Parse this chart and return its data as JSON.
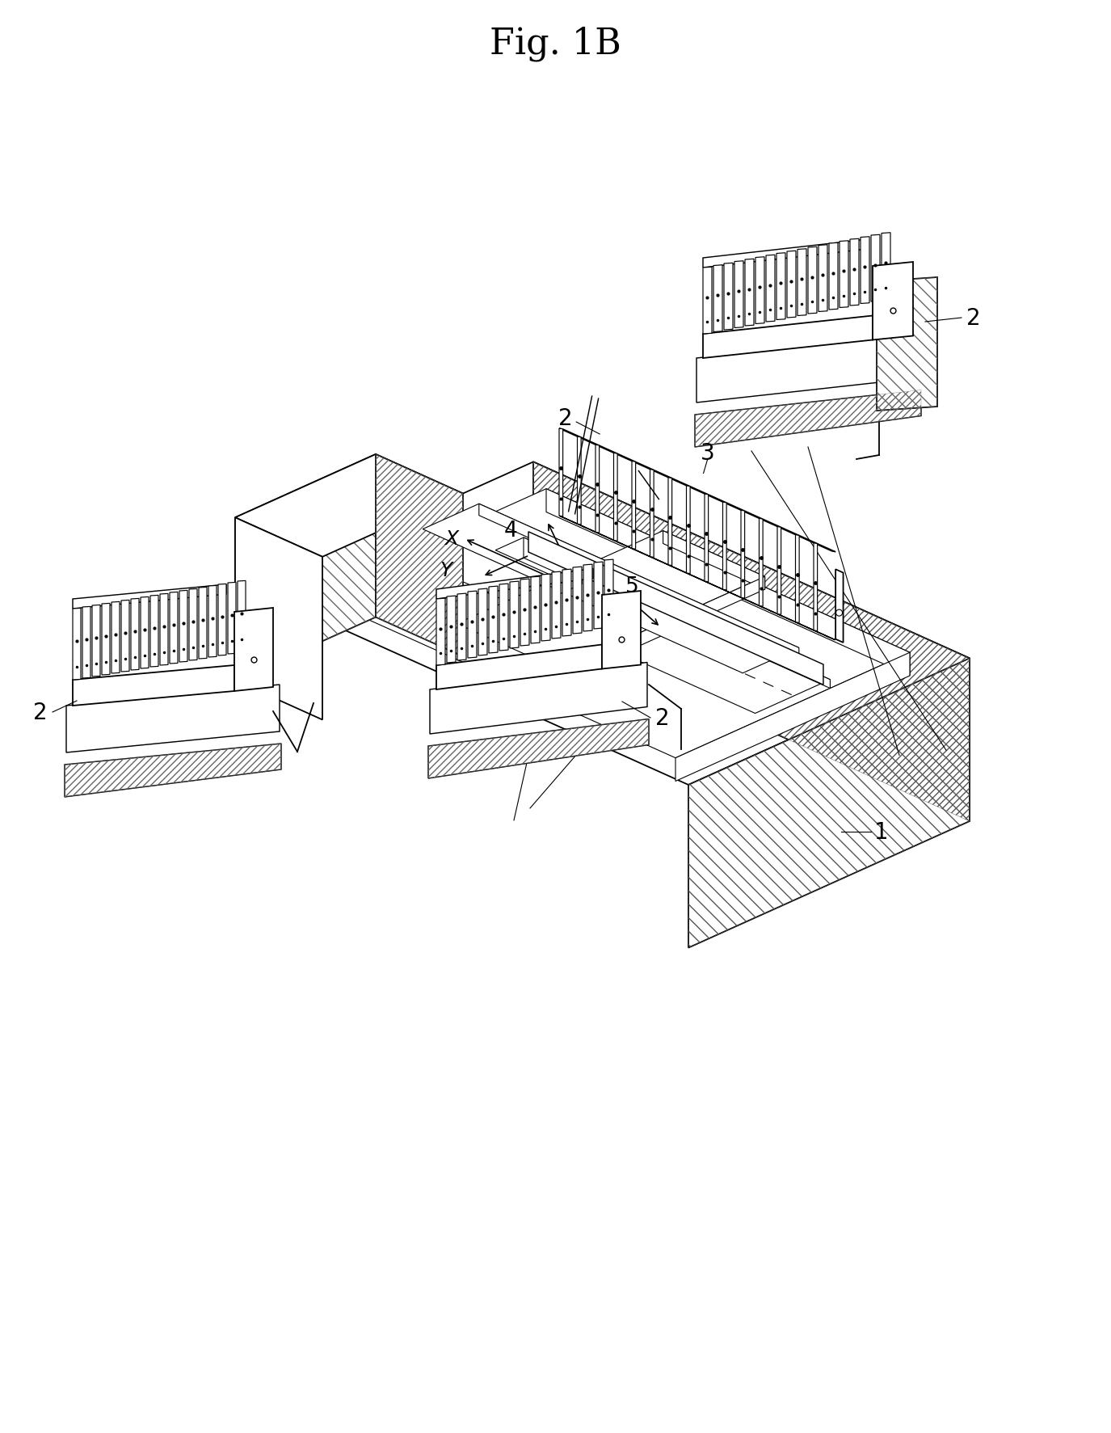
{
  "title": "Fig. 1B",
  "background_color": "#ffffff",
  "line_color": "#000000",
  "figsize": [
    13.75,
    17.74
  ],
  "dpi": 100,
  "title_fontsize": 32,
  "label_fontsize": 20,
  "lw_main": 1.3,
  "lw_thin": 0.8,
  "lw_thick": 1.8
}
